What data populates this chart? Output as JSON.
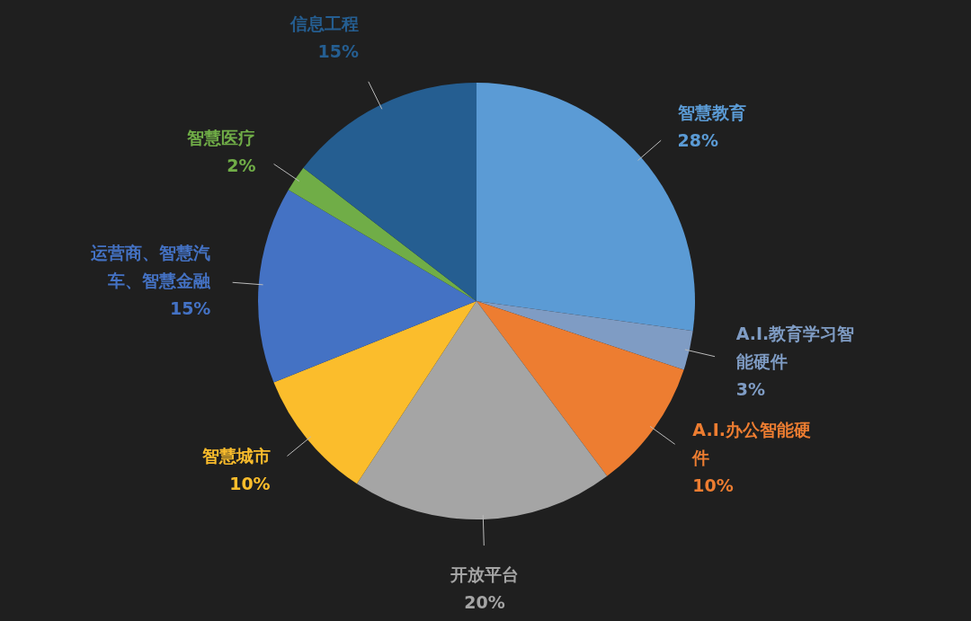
{
  "chart_data": {
    "type": "pie",
    "categories": [
      "智慧教育",
      "A.I.教育学习智能硬件",
      "A.I.办公智能硬件",
      "开放平台",
      "智慧城市",
      "运营商、智慧汽车、智慧金融",
      "智慧医疗",
      "信息工程"
    ],
    "values": [
      28,
      3,
      10,
      20,
      10,
      15,
      2,
      15
    ],
    "value_labels": [
      "28%",
      "3%",
      "10%",
      "20%",
      "10%",
      "15%",
      "2%",
      "15%"
    ],
    "colors": [
      "#5b9bd5",
      "#7f9cc4",
      "#ed7d31",
      "#a5a5a5",
      "#fbbd2c",
      "#4472c4",
      "#70ad47",
      "#255e91"
    ]
  }
}
